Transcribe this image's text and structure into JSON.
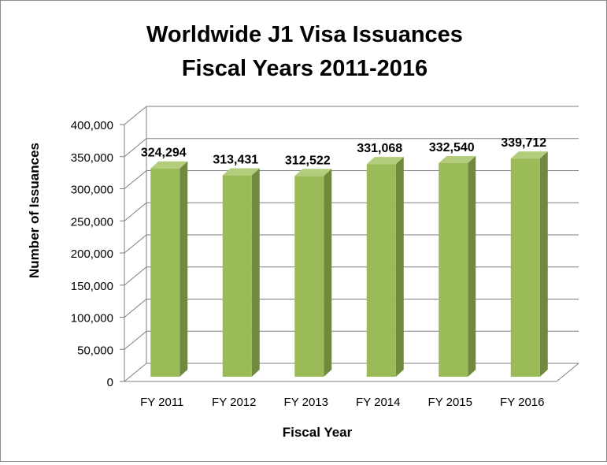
{
  "chart_data": {
    "type": "bar",
    "style": "3d-column",
    "title_line1": "Worldwide J1 Visa Issuances",
    "title_line2": "Fiscal Years 2011-2016",
    "xlabel": "Fiscal Year",
    "ylabel": "Number of Issuances",
    "categories": [
      "FY 2011",
      "FY 2012",
      "FY 2013",
      "FY 2014",
      "FY 2015",
      "FY 2016"
    ],
    "values": [
      324294,
      313431,
      312522,
      331068,
      332540,
      339712
    ],
    "value_labels": [
      "324,294",
      "313,431",
      "312,522",
      "331,068",
      "332,540",
      "339,712"
    ],
    "yticks": [
      "0",
      "50,000",
      "100,000",
      "150,000",
      "200,000",
      "250,000",
      "300,000",
      "350,000",
      "400,000"
    ],
    "ylim": [
      0,
      400000
    ],
    "grid": true,
    "colors": {
      "bar_front": "#9bbb59",
      "bar_side": "#71893f",
      "bar_top": "#b4cd7d",
      "grid": "#7f7f7f",
      "text": "#000000"
    }
  }
}
